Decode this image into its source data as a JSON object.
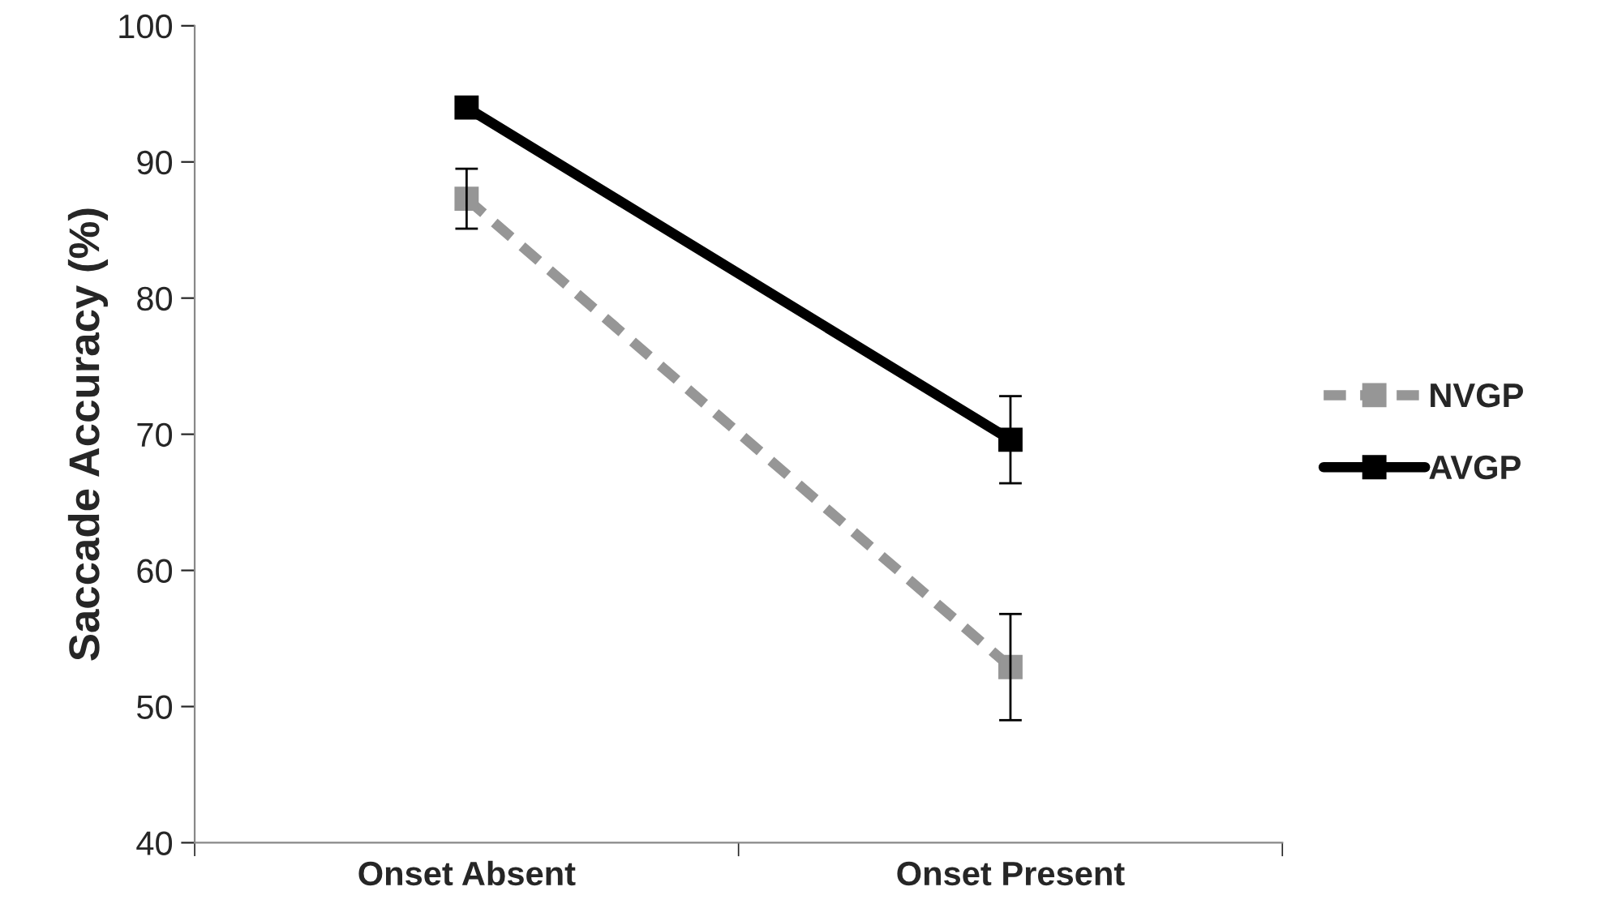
{
  "chart_data": {
    "type": "line",
    "ylabel": "Saccade Accuracy (%)",
    "categories": [
      "Onset Absent",
      "Onset Present"
    ],
    "series": [
      {
        "name": "NVGP",
        "color": "#969696",
        "values": [
          87.3,
          52.9
        ],
        "errors": [
          2.2,
          3.9
        ],
        "line_style": "dashed"
      },
      {
        "name": "AVGP",
        "color": "#000000",
        "values": [
          94.0,
          69.6
        ],
        "errors": [
          null,
          3.2
        ],
        "line_style": "solid"
      }
    ],
    "ylim": [
      40,
      100
    ],
    "yticks": [
      40,
      50,
      60,
      70,
      80,
      90,
      100
    ],
    "marker": "square",
    "grid": false,
    "legend": "right"
  }
}
